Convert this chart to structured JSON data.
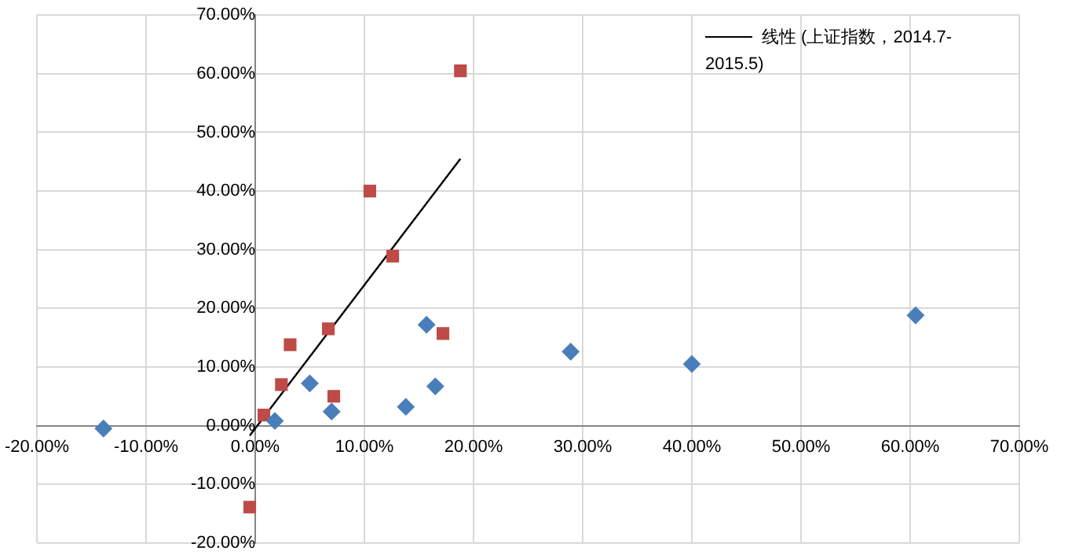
{
  "chart_data": {
    "type": "scatter",
    "xlim": [
      -20,
      70
    ],
    "ylim": [
      -20,
      70
    ],
    "xticks": [
      {
        "value": -20,
        "label": "-20.00%"
      },
      {
        "value": -10,
        "label": "-10.00%"
      },
      {
        "value": 0,
        "label": "0.00%"
      },
      {
        "value": 10,
        "label": "10.00%"
      },
      {
        "value": 20,
        "label": "20.00%"
      },
      {
        "value": 30,
        "label": "30.00%"
      },
      {
        "value": 40,
        "label": "40.00%"
      },
      {
        "value": 50,
        "label": "50.00%"
      },
      {
        "value": 60,
        "label": "60.00%"
      },
      {
        "value": 70,
        "label": "70.00%"
      }
    ],
    "yticks": [
      {
        "value": -20,
        "label": "-20.00%"
      },
      {
        "value": -10,
        "label": "-10.00%"
      },
      {
        "value": 0,
        "label": "0.00%"
      },
      {
        "value": 10,
        "label": "10.00%"
      },
      {
        "value": 20,
        "label": "20.00%"
      },
      {
        "value": 30,
        "label": "30.00%"
      },
      {
        "value": 40,
        "label": "40.00%"
      },
      {
        "value": 50,
        "label": "50.00%"
      },
      {
        "value": 60,
        "label": "60.00%"
      },
      {
        "value": 70,
        "label": "70.00%"
      }
    ],
    "grid": true,
    "legend": "top right",
    "series": [
      {
        "color": "#4a7ebb",
        "marker": "diamond",
        "x": [
          -13.9,
          1.8,
          5.0,
          7.0,
          13.8,
          15.7,
          16.5,
          28.9,
          40.0,
          60.5
        ],
        "values": [
          -0.5,
          0.8,
          7.2,
          2.4,
          3.2,
          17.2,
          6.7,
          12.6,
          10.5,
          18.8
        ]
      },
      {
        "color": "#be4b48",
        "marker": "square",
        "x": [
          -0.5,
          0.8,
          7.2,
          2.4,
          3.2,
          17.2,
          6.7,
          12.6,
          10.5,
          18.8
        ],
        "values": [
          -13.9,
          1.8,
          5.0,
          7.0,
          13.8,
          15.7,
          16.5,
          28.9,
          40.0,
          60.5
        ]
      },
      {
        "type": "line",
        "name": "线性 (上证指数，2014.7-2015.5)",
        "color": "#000000",
        "marker": "none",
        "x": [
          -0.5,
          18.8
        ],
        "values": [
          -1.7,
          45.5
        ]
      }
    ]
  }
}
